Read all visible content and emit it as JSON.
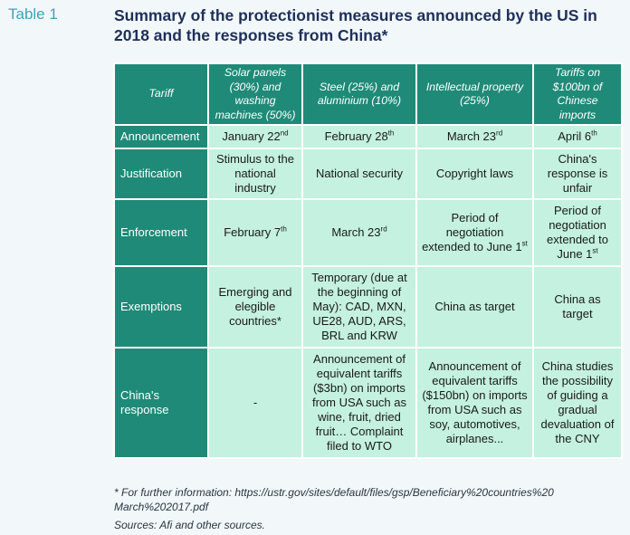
{
  "table_label": "Table 1",
  "title": "Summary of the protectionist measures announced by the US in 2018 and the responses from China*",
  "headers": [
    "Tariff",
    "Solar panels (30%) and washing machines (50%)",
    "Steel (25%) and aluminium (10%)",
    "Intellectual property (25%)",
    "Tariffs on $100bn of Chinese imports"
  ],
  "rows": [
    {
      "label": "Announcement",
      "cells": [
        {
          "text": "January 22",
          "sup": "nd"
        },
        {
          "text": "February 28",
          "sup": "th"
        },
        {
          "text": "March 23",
          "sup": "rd"
        },
        {
          "text": "April 6",
          "sup": "th"
        }
      ]
    },
    {
      "label": "Justification",
      "cells": [
        {
          "text": "Stimulus to the national industry"
        },
        {
          "text": "National security"
        },
        {
          "text": "Copyright laws"
        },
        {
          "text": "China's response is unfair"
        }
      ]
    },
    {
      "label": "Enforcement",
      "cells": [
        {
          "text": "February 7",
          "sup": "th"
        },
        {
          "text": "March 23",
          "sup": "rd"
        },
        {
          "text": "Period of negotiation extended to June 1",
          "sup": "st"
        },
        {
          "text": "Period of negotiation extended to June 1",
          "sup": "st"
        }
      ]
    },
    {
      "label": "Exemptions",
      "cells": [
        {
          "text": "Emerging and elegible countries*"
        },
        {
          "text": "Temporary (due at the beginning of May): CAD, MXN, UE28, AUD, ARS, BRL and KRW"
        },
        {
          "text": "China as target"
        },
        {
          "text": "China as target"
        }
      ]
    },
    {
      "label": "China's response",
      "cells": [
        {
          "text": "-"
        },
        {
          "text": "Announcement of equivalent tariffs ($3bn) on imports from USA such as wine, fruit, dried fruit… Complaint filed to WTO"
        },
        {
          "text": "Announcement of equivalent tariffs ($150bn) on imports from USA such as soy, automotives, airplanes..."
        },
        {
          "text": "China studies the possibility of guiding a gradual devaluation of the CNY"
        }
      ]
    }
  ],
  "footnote": "* For further information: https://ustr.gov/sites/default/files/gsp/Beneficiary%20countries%20 March%202017.pdf",
  "sources": "Sources: Afi and other sources."
}
